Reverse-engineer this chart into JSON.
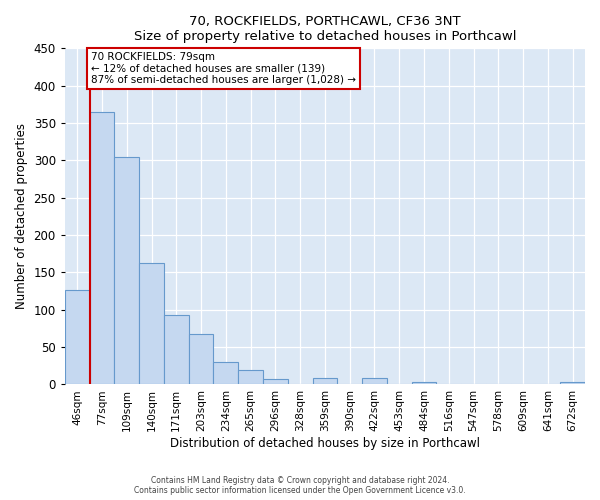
{
  "title": "70, ROCKFIELDS, PORTHCAWL, CF36 3NT",
  "subtitle": "Size of property relative to detached houses in Porthcawl",
  "xlabel": "Distribution of detached houses by size in Porthcawl",
  "ylabel": "Number of detached properties",
  "bar_labels": [
    "46sqm",
    "77sqm",
    "109sqm",
    "140sqm",
    "171sqm",
    "203sqm",
    "234sqm",
    "265sqm",
    "296sqm",
    "328sqm",
    "359sqm",
    "390sqm",
    "422sqm",
    "453sqm",
    "484sqm",
    "516sqm",
    "547sqm",
    "578sqm",
    "609sqm",
    "641sqm",
    "672sqm"
  ],
  "bar_heights": [
    127,
    365,
    305,
    163,
    93,
    68,
    30,
    20,
    7,
    0,
    9,
    0,
    8,
    0,
    3,
    0,
    1,
    0,
    0,
    0,
    3
  ],
  "bar_color": "#c5d8f0",
  "bar_edge_color": "#6699cc",
  "vline_color": "#cc0000",
  "ylim": [
    0,
    450
  ],
  "yticks": [
    0,
    50,
    100,
    150,
    200,
    250,
    300,
    350,
    400,
    450
  ],
  "annotation_title": "70 ROCKFIELDS: 79sqm",
  "annotation_line1": "← 12% of detached houses are smaller (139)",
  "annotation_line2": "87% of semi-detached houses are larger (1,028) →",
  "annotation_box_color": "#ffffff",
  "annotation_border_color": "#cc0000",
  "footer_line1": "Contains HM Land Registry data © Crown copyright and database right 2024.",
  "footer_line2": "Contains public sector information licensed under the Open Government Licence v3.0.",
  "plot_bg_color": "#dce8f5",
  "fig_bg_color": "#ffffff"
}
